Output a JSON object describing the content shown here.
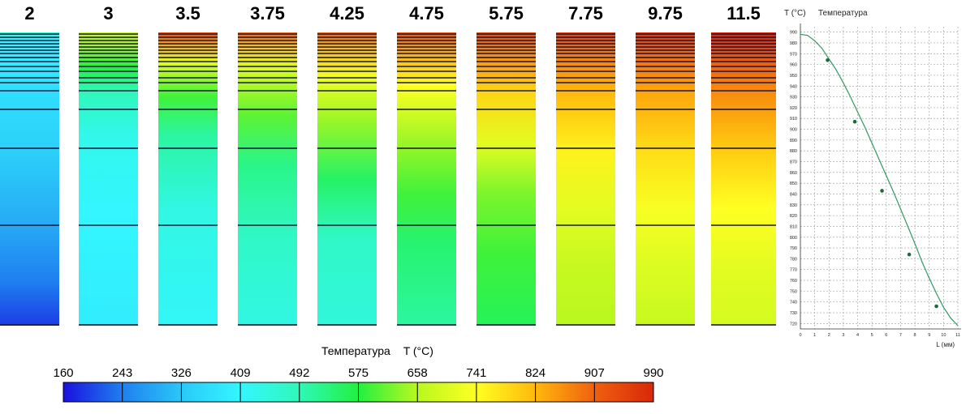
{
  "strips": [
    {
      "label": "2"
    },
    {
      "label": "3"
    },
    {
      "label": "3.5"
    },
    {
      "label": "3.75"
    },
    {
      "label": "4.25"
    },
    {
      "label": "4.75"
    },
    {
      "label": "5.75"
    },
    {
      "label": "7.75"
    },
    {
      "label": "9.75"
    },
    {
      "label": "11.5"
    }
  ],
  "legend": {
    "title": "Температура",
    "unit": "T (°C)",
    "ticks": [
      "160",
      "243",
      "326",
      "409",
      "492",
      "575",
      "658",
      "741",
      "824",
      "907",
      "990"
    ],
    "colors": [
      "#1a10e0",
      "#1f7ff0",
      "#2ac8f8",
      "#33f6ff",
      "#2ff8b8",
      "#22f040",
      "#b8f820",
      "#ffff22",
      "#ffb80c",
      "#f06010",
      "#d82808"
    ]
  },
  "chart_data": {
    "type": "line",
    "title": "Температура",
    "ylabel": "T (°C)",
    "xlabel": "L (мм)",
    "ylim": [
      715,
      995
    ],
    "xlim": [
      0,
      11
    ],
    "x_ticks": [
      "0",
      "1",
      "2",
      "3",
      "4",
      "5",
      "6",
      "7",
      "8",
      "9",
      "10",
      "11"
    ],
    "y_ticks": [
      "720",
      "730",
      "740",
      "750",
      "760",
      "770",
      "780",
      "790",
      "800",
      "810",
      "820",
      "830",
      "840",
      "850",
      "860",
      "870",
      "880",
      "890",
      "900",
      "910",
      "920",
      "930",
      "940",
      "950",
      "960",
      "970",
      "980",
      "990"
    ],
    "series": [
      {
        "line": {
          "x": [
            0,
            0.5,
            1,
            1.5,
            2,
            2.5,
            3,
            3.5,
            4,
            4.5,
            5,
            5.5,
            6,
            6.5,
            7,
            7.5,
            8,
            8.5,
            9,
            9.5,
            10,
            10.5,
            11
          ],
          "y": [
            988,
            987,
            982,
            975,
            965,
            955,
            943,
            930,
            916,
            902,
            887,
            872,
            857,
            842,
            826,
            810,
            794,
            777,
            762,
            748,
            735,
            725,
            718
          ]
        },
        "markers": {
          "x": [
            1.9,
            3.8,
            5.7,
            7.6,
            9.5
          ],
          "y": [
            964,
            907,
            843,
            784,
            736
          ]
        }
      }
    ],
    "grid": true,
    "color": "#2e9a5e",
    "marker_color": "#1c6a3a"
  }
}
